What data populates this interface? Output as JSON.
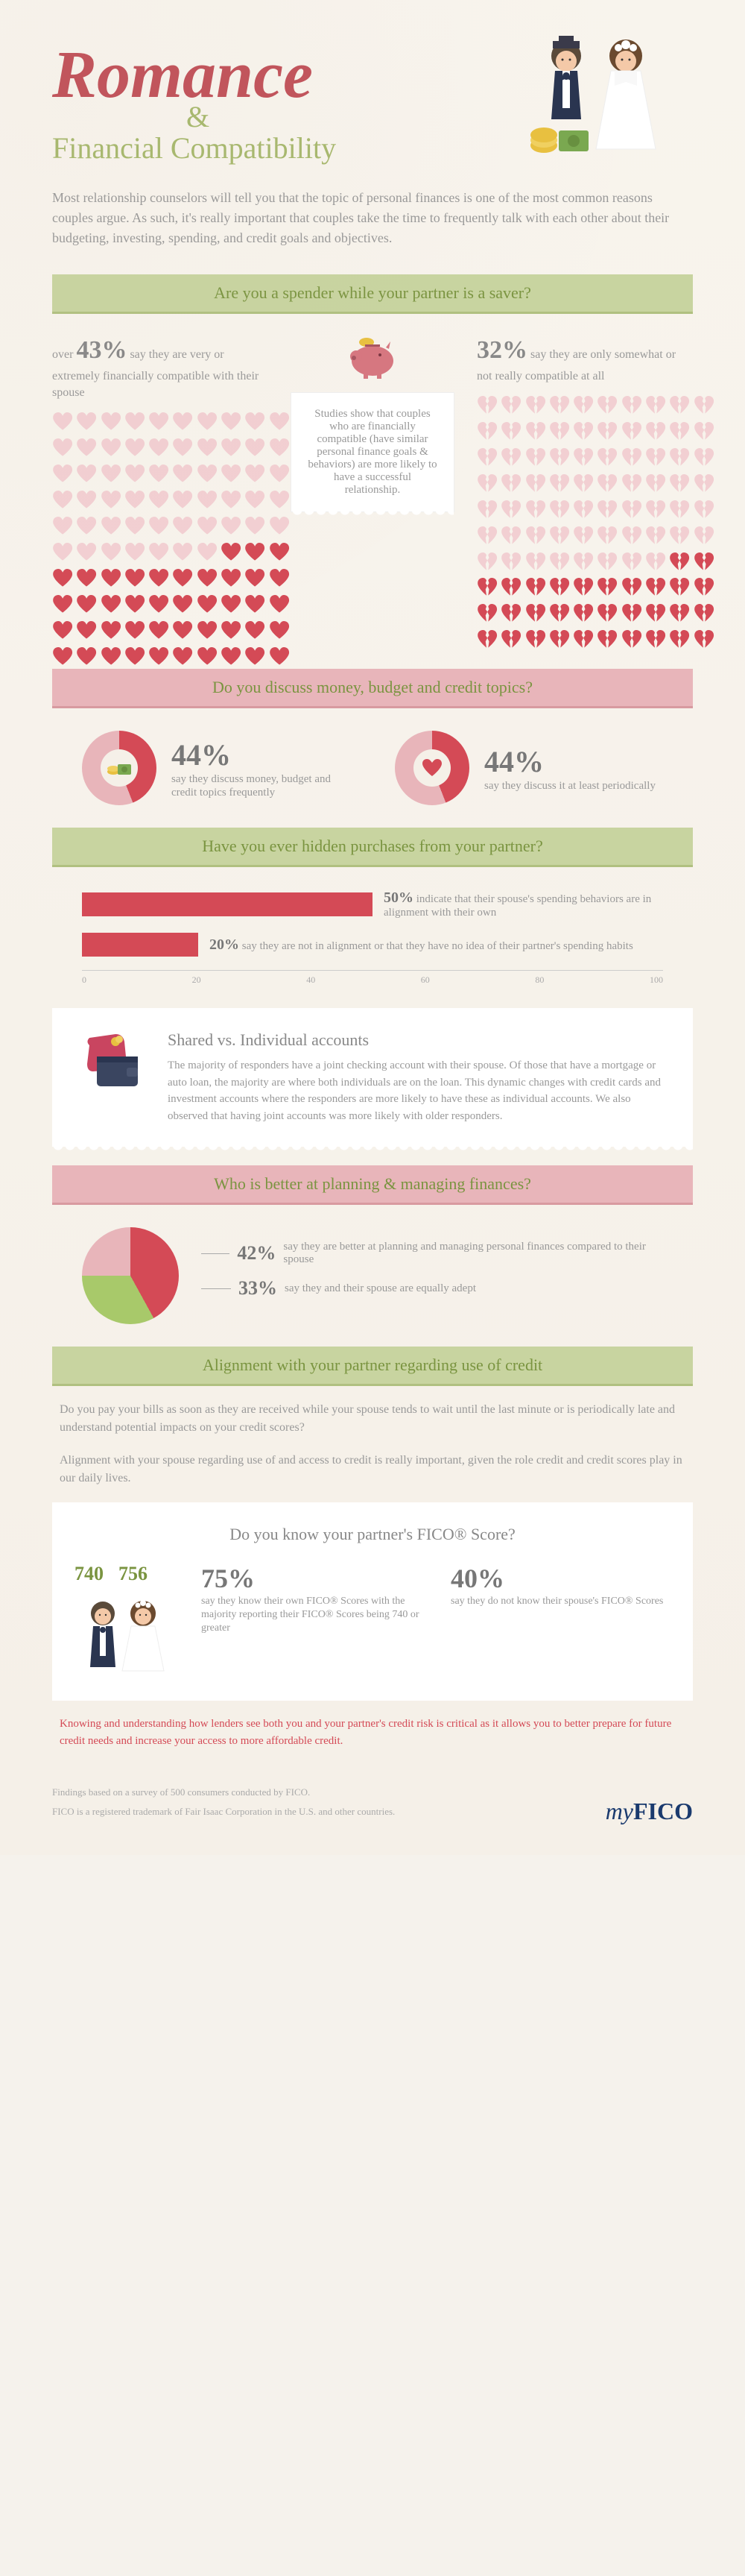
{
  "title": {
    "main": "Romance",
    "amp": "&",
    "sub": "Financial Compatibility"
  },
  "intro": "Most relationship counselors will tell you that the topic of personal finances is one of the most common reasons couples argue. As such, it's really important that couples take the time to frequently talk with each other about their budgeting, investing, spending, and credit goals and objectives.",
  "sections": {
    "spender": {
      "banner": "Are you a spender while your partner is a saver?",
      "left": {
        "prefix": "over ",
        "pct": "43%",
        "text": " say they are very or extremely financially compatible with their spouse",
        "fill": 43
      },
      "right": {
        "pct": "32%",
        "text": " say they are only somewhat or not really compatible at all",
        "fill": 32
      },
      "center": "Studies show that couples who are financially compatible (have similar personal finance goals & behaviors) are more likely to have a successful relationship."
    },
    "discuss": {
      "banner": "Do you discuss money, budget and credit topics?",
      "items": [
        {
          "pct": "44%",
          "desc": "say they discuss money, budget and credit topics frequently",
          "val": 44
        },
        {
          "pct": "44%",
          "desc": "say they discuss it at least periodically",
          "val": 44
        }
      ]
    },
    "hidden": {
      "banner": "Have you ever hidden purchases from your partner?",
      "bars": [
        {
          "pct": "50%",
          "text": "indicate that their spouse's spending behaviors are in alignment with their own",
          "val": 50
        },
        {
          "pct": "20%",
          "text": "say they are not in alignment or that they have no idea of their partner's spending habits",
          "val": 20
        }
      ],
      "axis": [
        "0",
        "20",
        "40",
        "60",
        "80",
        "100"
      ]
    },
    "shared": {
      "title": "Shared vs. Individual accounts",
      "body": "The majority of responders have a joint checking account with their spouse. Of those that have a mortgage or auto loan, the majority are where both individuals are on the loan. This dynamic changes with credit cards and investment accounts where the responders are more likely to have these as individual accounts. We also observed that having joint accounts was more likely with older responders."
    },
    "planning": {
      "banner": "Who is better at planning & managing finances?",
      "slices": [
        {
          "pct": "42%",
          "text": "say they are better at planning and managing personal finances compared to their spouse",
          "color": "#d44a56"
        },
        {
          "pct": "33%",
          "text": "say they and their spouse are equally adept",
          "color": "#a8c96a"
        }
      ],
      "pie_colors": {
        "a": "#d44a56",
        "b": "#a8c96a",
        "c": "#e8b5ba"
      },
      "pie_vals": [
        42,
        33,
        25
      ]
    },
    "credit": {
      "banner": "Alignment with your partner regarding use of credit",
      "p1": "Do you pay your bills as soon as they are received while your spouse tends to wait until the last minute or is periodically late and understand potential impacts on your credit scores?",
      "p2": "Alignment with your spouse regarding use of and access to credit is really important, given the role credit and credit scores play in our daily lives."
    },
    "fico": {
      "title": "Do you know your partner's FICO® Score?",
      "scores": [
        "740",
        "756"
      ],
      "stats": [
        {
          "pct": "75%",
          "desc": "say they know their own FICO® Scores with the majority reporting their FICO® Scores being 740 or greater"
        },
        {
          "pct": "40%",
          "desc": "say they do not know their spouse's FICO® Scores"
        }
      ]
    }
  },
  "footnote": "Knowing and understanding how lenders see both you and your partner's credit risk is critical as it allows you to better prepare for future credit needs and increase your access to more affordable credit.",
  "footer": {
    "line1": "Findings based on a survey of 500 consumers conducted by FICO.",
    "line2": "FICO is a registered trademark of Fair Isaac Corporation in the U.S. and other countries.",
    "logo": {
      "my": "my",
      "fico": "FICO"
    }
  },
  "colors": {
    "red": "#d44a56",
    "pink": "#e8b5ba",
    "pink_light": "#f2cfd2",
    "green": "#a8b86f",
    "green_light": "#c8d4a0",
    "bright_green": "#a8c96a",
    "text": "#999999",
    "dark_text": "#777777"
  }
}
